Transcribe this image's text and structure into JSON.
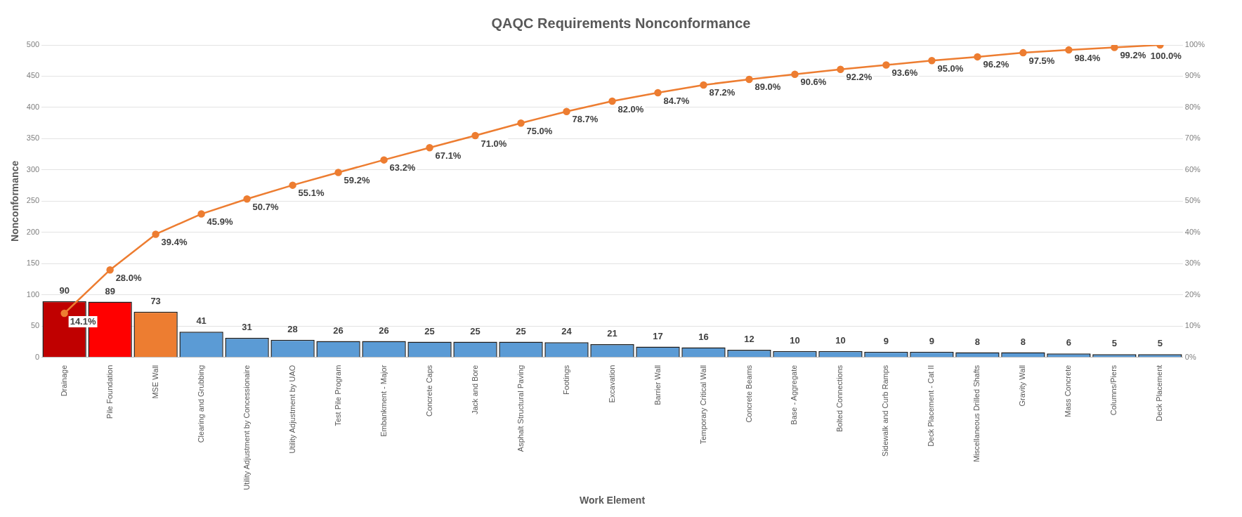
{
  "chart_data": {
    "type": "bar",
    "title": "QAQC Requirements Nonconformance",
    "xlabel": "Work Element",
    "ylabel": "Nonconformance",
    "categories": [
      "Drainage",
      "Pile Foundation",
      "MSE Wall",
      "Clearing and Grubbing",
      "Utility Adjustment by Concessionaire",
      "Utility Adjustment by UAO",
      "Test Pile Program",
      "Embankment - Major",
      "Concrete Caps",
      "Jack and Bore",
      "Asphalt Structural Paving",
      "Footings",
      "Excavation",
      "Barrier Wall",
      "Temporary Critical Wall",
      "Concrete Beams",
      "Base - Aggregate",
      "Bolted Connections",
      "Sidewalk and Curb Ramps",
      "Deck Placement - Cat II",
      "Miscellaneous Drilled Shafts",
      "Gravity Wall",
      "Mass Concrete",
      "Columns/Piers",
      "Deck Placement"
    ],
    "series": [
      {
        "type": "bar",
        "colors": [
          "#c00000",
          "#ff0000",
          "#ed7d31",
          "#5b9bd5",
          "#5b9bd5",
          "#5b9bd5",
          "#5b9bd5",
          "#5b9bd5",
          "#5b9bd5",
          "#5b9bd5",
          "#5b9bd5",
          "#5b9bd5",
          "#5b9bd5",
          "#5b9bd5",
          "#5b9bd5",
          "#5b9bd5",
          "#5b9bd5",
          "#5b9bd5",
          "#5b9bd5",
          "#5b9bd5",
          "#5b9bd5",
          "#5b9bd5",
          "#5b9bd5",
          "#5b9bd5",
          "#5b9bd5"
        ],
        "values": [
          90,
          89,
          73,
          41,
          31,
          28,
          26,
          26,
          25,
          25,
          25,
          24,
          21,
          17,
          16,
          12,
          10,
          10,
          9,
          9,
          8,
          8,
          6,
          5,
          5
        ],
        "value_labels": [
          "90",
          "89",
          "73",
          "41",
          "31",
          "28",
          "26",
          "26",
          "25",
          "25",
          "25",
          "24",
          "21",
          "17",
          "16",
          "12",
          "10",
          "10",
          "9",
          "9",
          "8",
          "8",
          "6",
          "5",
          "5"
        ]
      },
      {
        "type": "line",
        "axis": "y2",
        "color": "#ed7d31",
        "values": [
          14.1,
          28.0,
          39.4,
          45.9,
          50.7,
          55.1,
          59.2,
          63.2,
          67.1,
          71.0,
          75.0,
          78.7,
          82.0,
          84.7,
          87.2,
          89.0,
          90.6,
          92.2,
          93.6,
          95.0,
          96.2,
          97.5,
          98.4,
          99.2,
          100.0
        ],
        "value_labels": [
          "14.1%",
          "28.0%",
          "39.4%",
          "45.9%",
          "50.7%",
          "55.1%",
          "59.2%",
          "63.2%",
          "67.1%",
          "71.0%",
          "75.0%",
          "78.7%",
          "82.0%",
          "84.7%",
          "87.2%",
          "89.0%",
          "90.6%",
          "92.2%",
          "93.6%",
          "95.0%",
          "96.2%",
          "97.5%",
          "98.4%",
          "99.2%",
          "100.0%"
        ]
      }
    ],
    "ylim": [
      0,
      500
    ],
    "yticks": [
      0,
      50,
      100,
      150,
      200,
      250,
      300,
      350,
      400,
      450,
      500
    ],
    "y2lim": [
      0,
      100
    ],
    "y2ticks": [
      {
        "value": 0,
        "label": "0%"
      },
      {
        "value": 10,
        "label": "10%"
      },
      {
        "value": 20,
        "label": "20%"
      },
      {
        "value": 30,
        "label": "30%"
      },
      {
        "value": 40,
        "label": "40%"
      },
      {
        "value": 50,
        "label": "50%"
      },
      {
        "value": 60,
        "label": "60%"
      },
      {
        "value": 70,
        "label": "70%"
      },
      {
        "value": 80,
        "label": "80%"
      },
      {
        "value": 90,
        "label": "90%"
      },
      {
        "value": 100,
        "label": "100%"
      }
    ],
    "grid": "y",
    "legend": false,
    "marker": "circle",
    "line_style": "solid"
  }
}
